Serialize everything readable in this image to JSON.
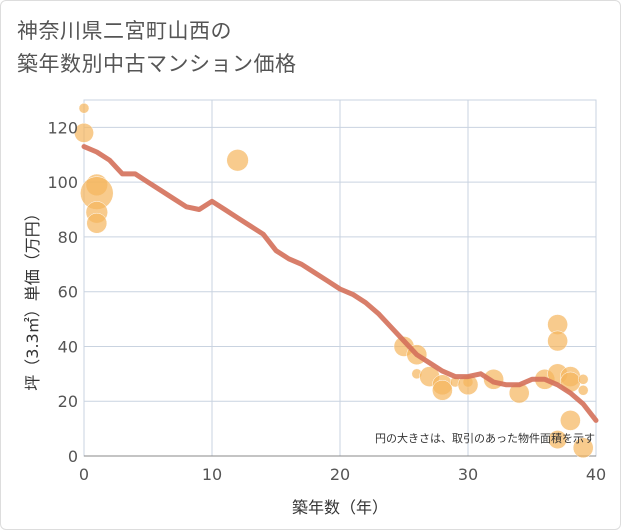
{
  "title_line1": "神奈川県二宮町山西の",
  "title_line2": "築年数別中古マンション価格",
  "chart_data": {
    "type": "scatter",
    "title": "神奈川県二宮町山西の築年数別中古マンション価格",
    "xlabel": "築年数（年）",
    "ylabel": "坪（3.3㎡）単価（万円）",
    "xlim": [
      0,
      40
    ],
    "ylim": [
      0,
      130
    ],
    "x_ticks": [
      0,
      10,
      20,
      30,
      40
    ],
    "y_ticks": [
      0,
      20,
      40,
      60,
      80,
      100,
      120
    ],
    "grid": true,
    "note": "円の大きさは、取引のあった物件面積を示す",
    "colors": {
      "bubble": "#f5b55c",
      "trend": "#d4705a",
      "grid": "#c9d3e0"
    },
    "bubbles": [
      {
        "x": 0,
        "y": 127,
        "s": 0.15
      },
      {
        "x": 0,
        "y": 118,
        "s": 0.55
      },
      {
        "x": 1,
        "y": 99,
        "s": 0.7
      },
      {
        "x": 1,
        "y": 96,
        "s": 1.6
      },
      {
        "x": 1,
        "y": 89,
        "s": 0.7
      },
      {
        "x": 1,
        "y": 85,
        "s": 0.6
      },
      {
        "x": 12,
        "y": 108,
        "s": 0.7
      },
      {
        "x": 25,
        "y": 40,
        "s": 0.6
      },
      {
        "x": 26,
        "y": 37,
        "s": 0.6
      },
      {
        "x": 26,
        "y": 30,
        "s": 0.15
      },
      {
        "x": 27,
        "y": 29,
        "s": 0.6
      },
      {
        "x": 28,
        "y": 26,
        "s": 0.6
      },
      {
        "x": 28,
        "y": 24,
        "s": 0.6
      },
      {
        "x": 29,
        "y": 27,
        "s": 0.15
      },
      {
        "x": 30,
        "y": 27,
        "s": 0.15
      },
      {
        "x": 30,
        "y": 26,
        "s": 0.6
      },
      {
        "x": 32,
        "y": 28,
        "s": 0.6
      },
      {
        "x": 34,
        "y": 23,
        "s": 0.6
      },
      {
        "x": 36,
        "y": 28,
        "s": 0.6
      },
      {
        "x": 37,
        "y": 48,
        "s": 0.6
      },
      {
        "x": 37,
        "y": 42,
        "s": 0.6
      },
      {
        "x": 37,
        "y": 30,
        "s": 0.6
      },
      {
        "x": 37,
        "y": 6,
        "s": 0.5
      },
      {
        "x": 38,
        "y": 29,
        "s": 0.6
      },
      {
        "x": 38,
        "y": 27,
        "s": 0.6
      },
      {
        "x": 38,
        "y": 13,
        "s": 0.6
      },
      {
        "x": 39,
        "y": 28,
        "s": 0.15
      },
      {
        "x": 39,
        "y": 24,
        "s": 0.15
      },
      {
        "x": 39,
        "y": 3,
        "s": 0.6
      }
    ],
    "trend": {
      "x": [
        0,
        1,
        2,
        3,
        4,
        5,
        6,
        7,
        8,
        9,
        10,
        11,
        12,
        13,
        14,
        15,
        16,
        17,
        18,
        19,
        20,
        21,
        22,
        23,
        24,
        25,
        26,
        27,
        28,
        29,
        30,
        31,
        32,
        33,
        34,
        35,
        36,
        37,
        38,
        39,
        40
      ],
      "y": [
        113,
        111,
        108,
        103,
        103,
        100,
        97,
        94,
        91,
        90,
        93,
        90,
        87,
        84,
        81,
        75,
        72,
        70,
        67,
        64,
        61,
        59,
        56,
        52,
        47,
        42,
        37,
        34,
        31,
        29,
        29,
        30,
        27,
        26,
        26,
        28,
        28,
        26,
        23,
        19,
        13
      ]
    }
  }
}
